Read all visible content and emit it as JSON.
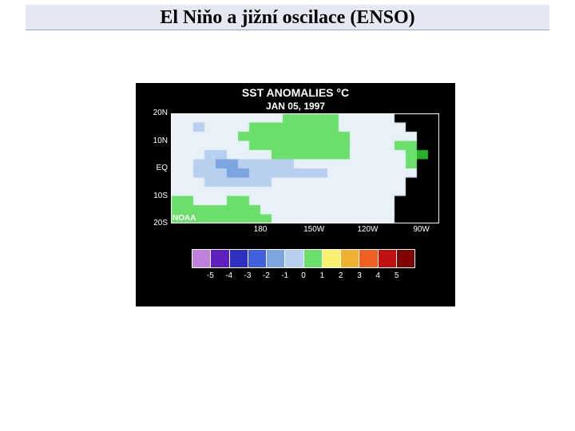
{
  "title": "El Niňo a jižní oscilace (ENSO)",
  "figure": {
    "background": "#000000",
    "title_main": "SST ANOMALIES °C",
    "title_sub": "JAN 05, 1997",
    "title_color": "#ffffff",
    "title_main_fontsize": 14,
    "title_sub_fontsize": 12,
    "map": {
      "x_range_deg": [
        130,
        280
      ],
      "y_range_deg": [
        -20,
        20
      ],
      "y_ticks": [
        {
          "label": "20N",
          "deg": 20
        },
        {
          "label": "10N",
          "deg": 10
        },
        {
          "label": "EQ",
          "deg": 0
        },
        {
          "label": "10S",
          "deg": -10
        },
        {
          "label": "20S",
          "deg": -20
        }
      ],
      "x_ticks": [
        {
          "label": "180",
          "deg": 180
        },
        {
          "label": "150W",
          "deg": 210
        },
        {
          "label": "120W",
          "deg": 240
        },
        {
          "label": "90W",
          "deg": 270
        }
      ],
      "land_color": "#000000",
      "noaa_label": "NOAA",
      "value_colors": {
        "-1.5": "#7aa5e0",
        "-0.8": "#b8d0f0",
        "-0.3": "#e8f0f8",
        "0.3": "#6ae06a",
        "0.8": "#28b028",
        "1.5": "#f8f070"
      },
      "grid": [
        [
          -0.3,
          -0.3,
          -0.3,
          -0.3,
          -0.3,
          -0.3,
          -0.3,
          -0.3,
          -0.3,
          -0.3,
          0.3,
          0.3,
          0.3,
          0.3,
          0.3,
          -0.3,
          -0.3,
          -0.3,
          -0.3,
          -0.3,
          -9,
          -9,
          -9,
          -9
        ],
        [
          -0.3,
          -0.3,
          -0.8,
          -0.3,
          -0.3,
          -0.3,
          -0.3,
          0.3,
          0.3,
          0.3,
          0.3,
          0.3,
          0.3,
          0.3,
          0.3,
          -0.3,
          -0.3,
          -0.3,
          -0.3,
          -0.3,
          -0.3,
          -9,
          -9,
          -9
        ],
        [
          -0.3,
          -0.3,
          -0.3,
          -0.3,
          -0.3,
          -0.3,
          0.3,
          0.3,
          0.3,
          0.3,
          0.3,
          0.3,
          0.3,
          0.3,
          0.3,
          0.3,
          -0.3,
          -0.3,
          -0.3,
          -0.3,
          -0.3,
          -0.3,
          -9,
          -9
        ],
        [
          -0.3,
          -0.3,
          -0.3,
          -0.3,
          -0.3,
          -0.3,
          -0.3,
          0.3,
          0.3,
          0.3,
          0.3,
          0.3,
          0.3,
          0.3,
          0.3,
          0.3,
          -0.3,
          -0.3,
          -0.3,
          -0.3,
          0.3,
          0.3,
          -9,
          -9
        ],
        [
          -0.3,
          -0.3,
          -0.3,
          -0.8,
          -0.8,
          -0.3,
          -0.3,
          -0.3,
          -0.3,
          0.3,
          0.3,
          0.3,
          0.3,
          0.3,
          0.3,
          0.3,
          -0.3,
          -0.3,
          -0.3,
          -0.3,
          -0.3,
          0.3,
          0.8,
          -9
        ],
        [
          -0.3,
          -0.3,
          -0.8,
          -0.8,
          -1.5,
          -1.5,
          -0.8,
          -0.8,
          -0.8,
          -0.8,
          -0.8,
          -0.3,
          -0.3,
          -0.3,
          -0.3,
          -0.3,
          -0.3,
          -0.3,
          -0.3,
          -0.3,
          -0.3,
          0.3,
          -9,
          -9
        ],
        [
          -0.3,
          -0.3,
          -0.8,
          -0.8,
          -0.8,
          -1.5,
          -1.5,
          -0.8,
          -0.8,
          -0.8,
          -0.8,
          -0.8,
          -0.8,
          -0.8,
          -0.3,
          -0.3,
          -0.3,
          -0.3,
          -0.3,
          -0.3,
          -0.3,
          -0.3,
          -9,
          -9
        ],
        [
          -0.3,
          -0.3,
          -0.3,
          -0.8,
          -0.8,
          -0.8,
          -0.8,
          -0.8,
          -0.8,
          -0.3,
          -0.3,
          -0.3,
          -0.3,
          -0.3,
          -0.3,
          -0.3,
          -0.3,
          -0.3,
          -0.3,
          -0.3,
          -0.3,
          -9,
          -9,
          -9
        ],
        [
          -0.3,
          -0.3,
          -0.3,
          -0.3,
          -0.3,
          -0.3,
          -0.3,
          -0.3,
          -0.3,
          -0.3,
          -0.3,
          -0.3,
          -0.3,
          -0.3,
          -0.3,
          -0.3,
          -0.3,
          -0.3,
          -0.3,
          -0.3,
          -0.3,
          -9,
          -9,
          -9
        ],
        [
          0.3,
          0.3,
          -0.3,
          -0.3,
          -0.3,
          0.3,
          0.3,
          -0.3,
          -0.3,
          -0.3,
          -0.3,
          -0.3,
          -0.3,
          -0.3,
          -0.3,
          -0.3,
          -0.3,
          -0.3,
          -0.3,
          -0.3,
          -9,
          -9,
          -9,
          -9
        ],
        [
          0.3,
          0.3,
          0.3,
          0.3,
          0.3,
          0.3,
          0.3,
          0.3,
          -0.3,
          -0.3,
          -0.3,
          -0.3,
          -0.3,
          -0.3,
          -0.3,
          -0.3,
          -0.3,
          -0.3,
          -0.3,
          -0.3,
          -9,
          -9,
          -9,
          -9
        ],
        [
          0.3,
          0.3,
          0.3,
          0.3,
          0.3,
          0.3,
          0.3,
          0.3,
          0.3,
          -0.3,
          -0.3,
          -0.3,
          -0.3,
          -0.3,
          -0.3,
          -0.3,
          -0.3,
          -0.3,
          -0.3,
          -0.3,
          -9,
          -9,
          -9,
          -9
        ]
      ]
    },
    "colorbar": {
      "ticks": [
        -5,
        -4,
        -3,
        -2,
        -1,
        0,
        1,
        2,
        3,
        4,
        5
      ],
      "colors": [
        "#c080e0",
        "#6020c0",
        "#3030c0",
        "#4060e0",
        "#7aa5e0",
        "#b8d0f0",
        "#6ae06a",
        "#f8f070",
        "#f0b030",
        "#f06020",
        "#c01010",
        "#800000"
      ]
    }
  }
}
